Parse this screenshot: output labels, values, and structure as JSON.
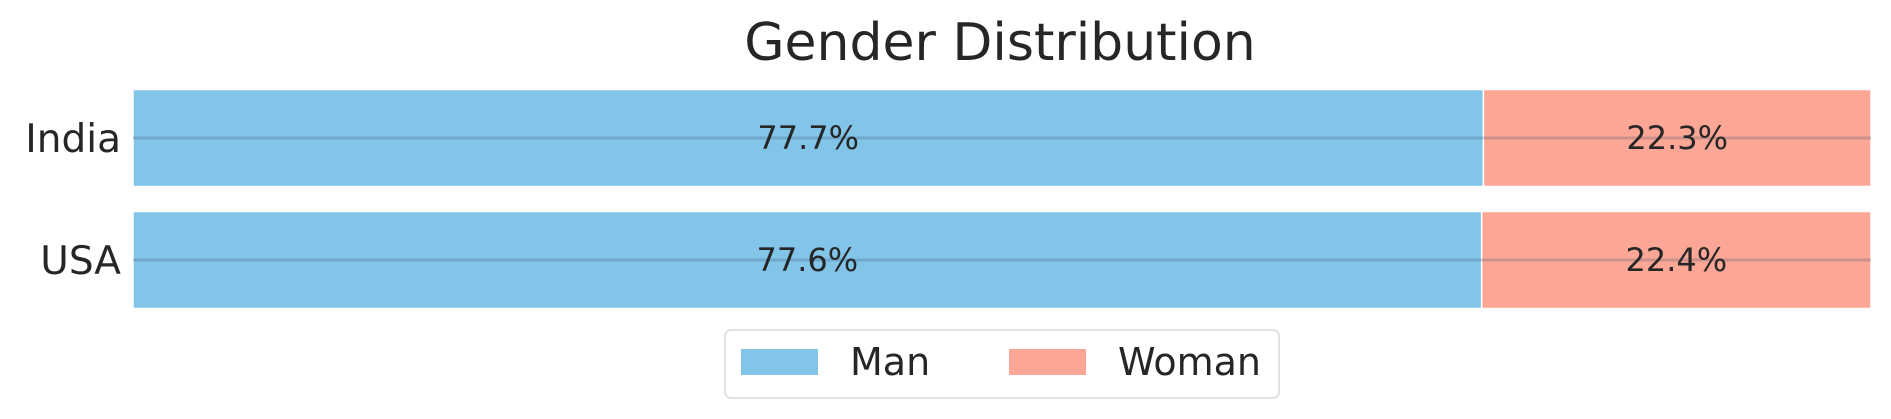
{
  "chart_data": {
    "type": "bar",
    "orientation": "horizontal",
    "stacked": true,
    "normalized": true,
    "title": "Gender Distribution",
    "categories": [
      "India",
      "USA"
    ],
    "series": [
      {
        "name": "Man",
        "values": [
          77.7,
          77.6
        ],
        "labels": [
          "77.7%",
          "77.6%"
        ],
        "color": "#82c5e8"
      },
      {
        "name": "Woman",
        "values": [
          22.3,
          22.4
        ],
        "labels": [
          "22.3%",
          "22.4%"
        ],
        "color": "#fca696"
      }
    ],
    "xlim": [
      0,
      100
    ],
    "grid": "horizontal",
    "legend": "bottom-center"
  }
}
